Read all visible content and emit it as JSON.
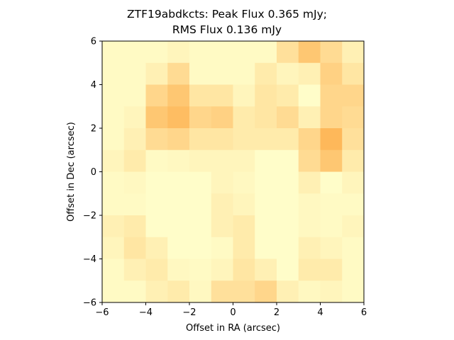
{
  "chart_data": {
    "type": "heatmap",
    "title_line1": "ZTF19abdkcts: Peak Flux 0.365 mJy;",
    "title_line2": "RMS Flux 0.136 mJy",
    "xlabel": "Offset in RA (arcsec)",
    "ylabel": "Offset in Dec (arcsec)",
    "xlim": [
      -6,
      6
    ],
    "ylim": [
      -6,
      6
    ],
    "x_ticks": [
      -6,
      -4,
      -2,
      0,
      2,
      4,
      6
    ],
    "y_ticks": [
      -6,
      -4,
      -2,
      0,
      2,
      4,
      6
    ],
    "x_tick_labels": [
      "−6",
      "−4",
      "−2",
      "0",
      "2",
      "4",
      "6"
    ],
    "y_tick_labels": [
      "−6",
      "−4",
      "−2",
      "0",
      "2",
      "4",
      "6"
    ],
    "grid": false,
    "colormap": "YlOrBr-like",
    "color_low": "#ffffcc",
    "color_high": "#fe9929",
    "value_range": [
      0,
      1
    ],
    "grid_size": [
      12,
      12
    ],
    "values_top_to_bottom": [
      [
        0.05,
        0.05,
        0.05,
        0.1,
        0.05,
        0.05,
        0.05,
        0.05,
        0.3,
        0.55,
        0.35,
        0.15
      ],
      [
        0.05,
        0.05,
        0.15,
        0.35,
        0.05,
        0.05,
        0.05,
        0.2,
        0.1,
        0.15,
        0.45,
        0.25
      ],
      [
        0.05,
        0.05,
        0.4,
        0.55,
        0.25,
        0.25,
        0.1,
        0.25,
        0.2,
        0.02,
        0.4,
        0.4
      ],
      [
        0.05,
        0.1,
        0.55,
        0.65,
        0.4,
        0.45,
        0.2,
        0.25,
        0.35,
        0.15,
        0.4,
        0.35
      ],
      [
        0.05,
        0.15,
        0.35,
        0.4,
        0.25,
        0.25,
        0.2,
        0.2,
        0.2,
        0.4,
        0.7,
        0.3
      ],
      [
        0.1,
        0.2,
        0.05,
        0.07,
        0.1,
        0.1,
        0.1,
        0.02,
        0.02,
        0.35,
        0.55,
        0.2
      ],
      [
        0.05,
        0.07,
        0.02,
        0.02,
        0.02,
        0.1,
        0.07,
        0.02,
        0.02,
        0.15,
        0.02,
        0.1
      ],
      [
        0.05,
        0.05,
        0.02,
        0.02,
        0.02,
        0.15,
        0.1,
        0.02,
        0.02,
        0.07,
        0.05,
        0.05
      ],
      [
        0.15,
        0.2,
        0.02,
        0.02,
        0.02,
        0.15,
        0.2,
        0.02,
        0.02,
        0.07,
        0.05,
        0.1
      ],
      [
        0.1,
        0.25,
        0.15,
        0.02,
        0.02,
        0.05,
        0.2,
        0.02,
        0.02,
        0.15,
        0.1,
        0.05
      ],
      [
        0.05,
        0.15,
        0.2,
        0.07,
        0.05,
        0.1,
        0.25,
        0.15,
        0.02,
        0.2,
        0.2,
        0.05
      ],
      [
        0.05,
        0.05,
        0.15,
        0.2,
        0.07,
        0.3,
        0.3,
        0.4,
        0.15,
        0.07,
        0.1,
        0.05
      ]
    ]
  }
}
